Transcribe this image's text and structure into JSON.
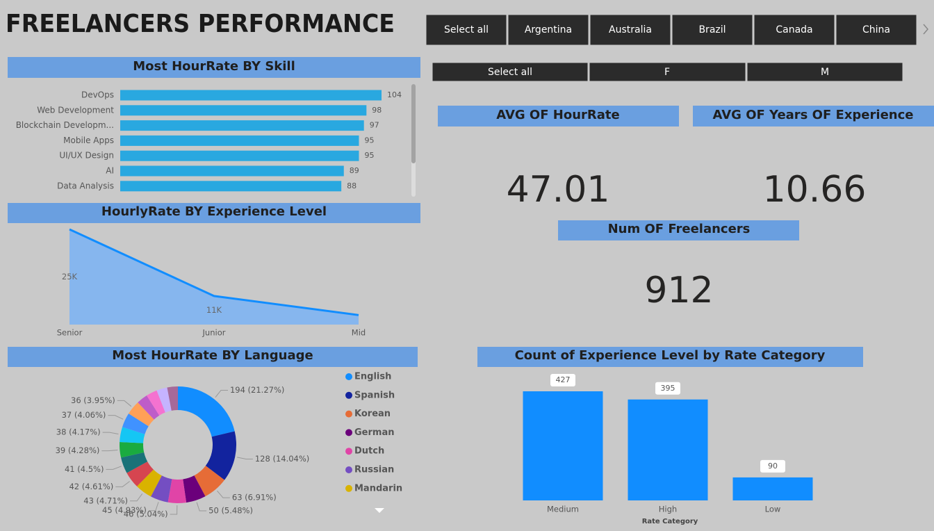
{
  "header": {
    "title": "FREELANCERS PERFORMANCE"
  },
  "slicers": {
    "country": [
      "Select all",
      "Argentina",
      "Australia",
      "Brazil",
      "Canada",
      "China"
    ],
    "gender": [
      "Select all",
      "F",
      "M"
    ]
  },
  "kpis": [
    {
      "title": "AVG OF HourRate",
      "value": 47.01
    },
    {
      "title": "AVG OF Years OF Experience",
      "value": 10.66
    },
    {
      "title": "Num OF Freelancers",
      "value": 912
    }
  ],
  "chart_data": [
    {
      "type": "hbar",
      "title": "Most HourRate BY Skill",
      "categories": [
        "DevOps",
        "Web Development",
        "Blockchain Developm...",
        "Mobile Apps",
        "UI/UX Design",
        "AI",
        "Data Analysis"
      ],
      "values": [
        104,
        98,
        97,
        95,
        95,
        89,
        88
      ],
      "color": "#29a8e0"
    },
    {
      "type": "area",
      "title": "HourlyRate BY Experience Level",
      "categories": [
        "Senior",
        "Junior",
        "Mid"
      ],
      "values": [
        25000,
        11000,
        7000
      ],
      "value_labels": [
        "25K",
        "11K",
        null
      ],
      "ylim": [
        5000,
        25000
      ],
      "color": "#118dff"
    },
    {
      "type": "donut",
      "title": "Most HourRate BY Language",
      "categories": [
        "English",
        "Spanish",
        "Korean",
        "German",
        "Dutch",
        "Russian",
        "Mandarin",
        null,
        null,
        null,
        null,
        null,
        null,
        null,
        null,
        null,
        null
      ],
      "values": [
        194,
        128,
        63,
        50,
        46,
        45,
        43,
        42,
        41,
        39,
        38,
        37,
        36,
        28,
        28,
        27,
        27
      ],
      "value_labels": [
        "194 (21.27%)",
        "128 (14.04%)",
        "63 (6.91%)",
        "50 (5.48%)",
        "46 (5.04%)",
        "45 (4.93%)",
        "43 (4.71%)",
        "42 (4.61%)",
        "41 (4.5%)",
        "39 (4.28%)",
        "38 (4.17%)",
        "37 (4.06%)",
        "36 (3.95%)",
        null,
        null,
        null,
        null
      ],
      "colors": [
        "#118dff",
        "#12239e",
        "#e66c37",
        "#6b007b",
        "#e044a7",
        "#744ec2",
        "#d9b300",
        "#d64550",
        "#197278",
        "#1aab40",
        "#15c6f4",
        "#4092ff",
        "#ffa058",
        "#be5dc9",
        "#f472d0",
        "#c5b3ff",
        "#a66999"
      ]
    },
    {
      "type": "column",
      "title": "Count of Experience Level by Rate Category",
      "categories": [
        "Medium",
        "High",
        "Low"
      ],
      "values": [
        427,
        395,
        90
      ],
      "x_label": "Rate Category",
      "color": "#118dff"
    }
  ]
}
